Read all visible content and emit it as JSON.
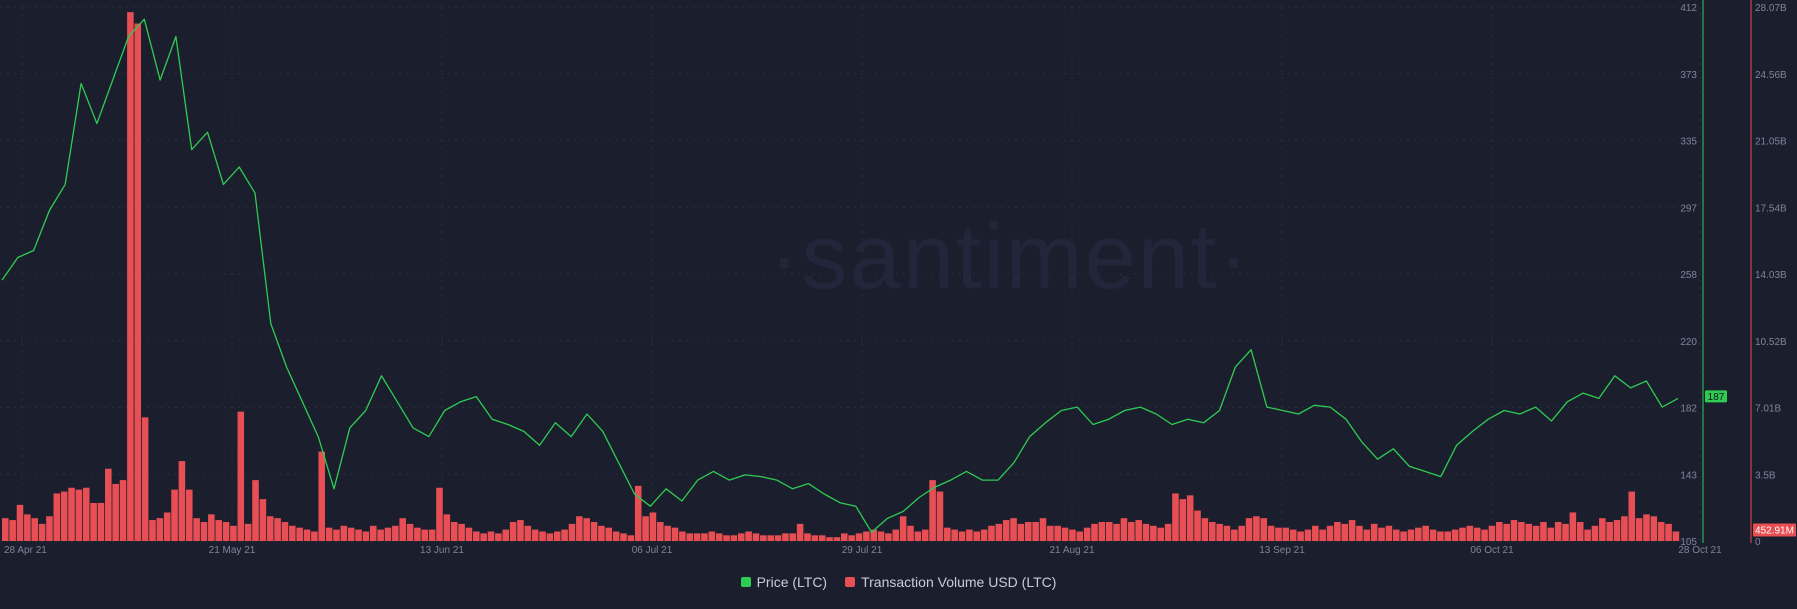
{
  "chart_data": {
    "type": "bar+line",
    "watermark": "·santiment·",
    "x_ticks": [
      "28 Apr 21",
      "21 May 21",
      "13 Jun 21",
      "06 Jul 21",
      "29 Jul 21",
      "21 Aug 21",
      "13 Sep 21",
      "06 Oct 21",
      "28 Oct 21"
    ],
    "price_axis": {
      "ticks": [
        "412",
        "373",
        "335",
        "297",
        "258",
        "220",
        "182",
        "143",
        "105"
      ],
      "ylim": [
        105,
        412
      ]
    },
    "volume_axis": {
      "ticks": [
        "28.07B",
        "24.56B",
        "21.05B",
        "17.54B",
        "14.03B",
        "10.52B",
        "7.01B",
        "3.5B",
        "0"
      ],
      "ylim": [
        0,
        28.07
      ]
    },
    "current_price_label": "187",
    "current_volume_label": "452.91M",
    "series": [
      {
        "name": "Price (LTC)",
        "color": "#2ecc52",
        "unit": "USD",
        "points": [
          [
            "28 Apr",
            255
          ],
          [
            "30 Apr",
            268
          ],
          [
            "2 May",
            272
          ],
          [
            "4 May",
            295
          ],
          [
            "6 May",
            310
          ],
          [
            "7 May",
            368
          ],
          [
            "8 May",
            345
          ],
          [
            "9 May",
            370
          ],
          [
            "10 May",
            395
          ],
          [
            "11 May",
            405
          ],
          [
            "12 May",
            370
          ],
          [
            "13 May",
            395
          ],
          [
            "14 May",
            330
          ],
          [
            "15 May",
            340
          ],
          [
            "16 May",
            310
          ],
          [
            "17 May",
            320
          ],
          [
            "18 May",
            305
          ],
          [
            "19 May",
            230
          ],
          [
            "20 May",
            205
          ],
          [
            "21 May",
            185
          ],
          [
            "22 May",
            165
          ],
          [
            "23 May",
            135
          ],
          [
            "24 May",
            170
          ],
          [
            "25 May",
            180
          ],
          [
            "26 May",
            200
          ],
          [
            "27 May",
            185
          ],
          [
            "28 May",
            170
          ],
          [
            "29 May",
            165
          ],
          [
            "30 May",
            180
          ],
          [
            "1 Jun",
            185
          ],
          [
            "3 Jun",
            188
          ],
          [
            "5 Jun",
            175
          ],
          [
            "7 Jun",
            172
          ],
          [
            "9 Jun",
            168
          ],
          [
            "10 Jun",
            160
          ],
          [
            "12 Jun",
            173
          ],
          [
            "14 Jun",
            165
          ],
          [
            "16 Jun",
            178
          ],
          [
            "18 Jun",
            168
          ],
          [
            "20 Jun",
            150
          ],
          [
            "21 Jun",
            132
          ],
          [
            "22 Jun",
            125
          ],
          [
            "24 Jun",
            135
          ],
          [
            "26 Jun",
            128
          ],
          [
            "28 Jun",
            140
          ],
          [
            "30 Jun",
            145
          ],
          [
            "2 Jul",
            140
          ],
          [
            "4 Jul",
            143
          ],
          [
            "6 Jul",
            142
          ],
          [
            "8 Jul",
            140
          ],
          [
            "10 Jul",
            135
          ],
          [
            "12 Jul",
            138
          ],
          [
            "14 Jul",
            132
          ],
          [
            "16 Jul",
            127
          ],
          [
            "18 Jul",
            125
          ],
          [
            "20 Jul",
            110
          ],
          [
            "21 Jul",
            118
          ],
          [
            "23 Jul",
            122
          ],
          [
            "25 Jul",
            130
          ],
          [
            "27 Jul",
            136
          ],
          [
            "29 Jul",
            140
          ],
          [
            "31 Jul",
            145
          ],
          [
            "2 Aug",
            140
          ],
          [
            "4 Aug",
            140
          ],
          [
            "6 Aug",
            150
          ],
          [
            "8 Aug",
            165
          ],
          [
            "10 Aug",
            173
          ],
          [
            "12 Aug",
            180
          ],
          [
            "14 Aug",
            182
          ],
          [
            "16 Aug",
            172
          ],
          [
            "18 Aug",
            175
          ],
          [
            "20 Aug",
            180
          ],
          [
            "22 Aug",
            182
          ],
          [
            "24 Aug",
            178
          ],
          [
            "26 Aug",
            172
          ],
          [
            "28 Aug",
            175
          ],
          [
            "30 Aug",
            173
          ],
          [
            "1 Sep",
            180
          ],
          [
            "3 Sep",
            205
          ],
          [
            "5 Sep",
            215
          ],
          [
            "7 Sep",
            182
          ],
          [
            "9 Sep",
            180
          ],
          [
            "11 Sep",
            178
          ],
          [
            "13 Sep",
            183
          ],
          [
            "15 Sep",
            182
          ],
          [
            "17 Sep",
            175
          ],
          [
            "19 Sep",
            162
          ],
          [
            "21 Sep",
            152
          ],
          [
            "23 Sep",
            158
          ],
          [
            "25 Sep",
            148
          ],
          [
            "27 Sep",
            145
          ],
          [
            "29 Sep",
            142
          ],
          [
            "1 Oct",
            160
          ],
          [
            "3 Oct",
            168
          ],
          [
            "5 Oct",
            175
          ],
          [
            "7 Oct",
            180
          ],
          [
            "9 Oct",
            178
          ],
          [
            "11 Oct",
            182
          ],
          [
            "13 Oct",
            174
          ],
          [
            "15 Oct",
            185
          ],
          [
            "17 Oct",
            190
          ],
          [
            "19 Oct",
            187
          ],
          [
            "21 Oct",
            200
          ],
          [
            "23 Oct",
            193
          ],
          [
            "25 Oct",
            197
          ],
          [
            "26 Oct",
            182
          ],
          [
            "27 Oct",
            187
          ]
        ]
      },
      {
        "name": "Transaction Volume USD (LTC)",
        "color": "#e84f54",
        "unit": "USD (billions)",
        "bars": [
          1.2,
          1.1,
          1.9,
          1.4,
          1.2,
          0.9,
          1.3,
          2.5,
          2.6,
          2.8,
          2.7,
          2.8,
          2.0,
          2.0,
          3.8,
          3.0,
          3.2,
          27.8,
          27.2,
          6.5,
          1.1,
          1.2,
          1.5,
          2.7,
          4.2,
          2.7,
          1.2,
          1.0,
          1.4,
          1.1,
          1.0,
          0.8,
          6.8,
          0.9,
          3.2,
          2.2,
          1.3,
          1.2,
          1.0,
          0.8,
          0.7,
          0.6,
          0.5,
          4.7,
          0.7,
          0.6,
          0.8,
          0.7,
          0.6,
          0.5,
          0.8,
          0.6,
          0.7,
          0.8,
          1.2,
          0.9,
          0.7,
          0.6,
          0.6,
          2.8,
          1.4,
          1.0,
          0.9,
          0.7,
          0.5,
          0.4,
          0.5,
          0.4,
          0.6,
          1.0,
          1.1,
          0.8,
          0.6,
          0.5,
          0.4,
          0.5,
          0.6,
          0.9,
          1.3,
          1.2,
          1.0,
          0.8,
          0.7,
          0.5,
          0.4,
          0.3,
          2.9,
          1.3,
          1.5,
          1.0,
          0.8,
          0.7,
          0.5,
          0.4,
          0.4,
          0.4,
          0.5,
          0.4,
          0.3,
          0.3,
          0.4,
          0.5,
          0.4,
          0.3,
          0.3,
          0.3,
          0.4,
          0.4,
          0.9,
          0.4,
          0.3,
          0.3,
          0.2,
          0.2,
          0.4,
          0.3,
          0.4,
          0.5,
          0.6,
          0.5,
          0.4,
          0.6,
          1.3,
          0.8,
          0.5,
          0.6,
          3.2,
          2.6,
          0.7,
          0.6,
          0.5,
          0.6,
          0.5,
          0.6,
          0.8,
          0.9,
          1.1,
          1.2,
          0.9,
          1.0,
          1.0,
          1.2,
          0.8,
          0.8,
          0.7,
          0.6,
          0.5,
          0.7,
          0.9,
          1.0,
          1.0,
          0.9,
          1.2,
          1.0,
          1.1,
          0.9,
          0.8,
          0.7,
          0.9,
          2.5,
          2.2,
          2.4,
          1.6,
          1.2,
          1.0,
          0.9,
          0.8,
          0.6,
          0.8,
          1.2,
          1.3,
          1.2,
          0.8,
          0.7,
          0.7,
          0.6,
          0.5,
          0.6,
          0.8,
          0.6,
          0.8,
          1.0,
          0.9,
          1.1,
          0.8,
          0.6,
          0.9,
          0.7,
          0.8,
          0.6,
          0.5,
          0.6,
          0.7,
          0.8,
          0.6,
          0.5,
          0.5,
          0.6,
          0.7,
          0.8,
          0.7,
          0.6,
          0.8,
          1.0,
          0.9,
          1.1,
          1.0,
          0.9,
          0.8,
          1.0,
          0.7,
          1.0,
          0.9,
          1.5,
          1.0,
          0.6,
          0.8,
          1.2,
          1.0,
          1.1,
          1.3,
          2.6,
          1.2,
          1.4,
          1.3,
          1.0,
          0.9,
          0.5
        ]
      }
    ],
    "grid": true,
    "legend_position": "bottom-center"
  }
}
